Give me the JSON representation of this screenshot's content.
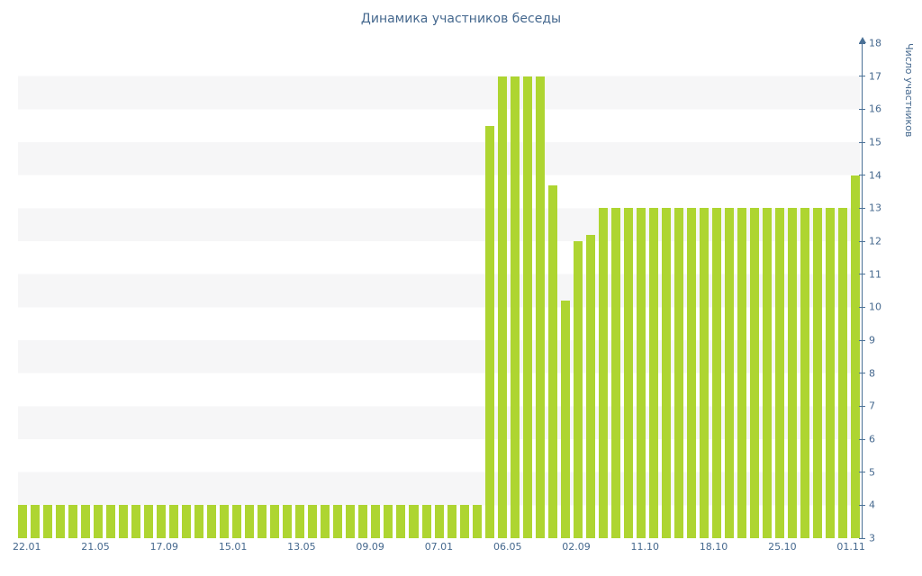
{
  "chart_data": {
    "type": "bar",
    "title": "Динамика участников беседы",
    "xlabel": "",
    "ylabel": "Число участников",
    "ylim": [
      3,
      18
    ],
    "y_tick_step": 1,
    "grid": "alternating-horizontal-stripes",
    "legend": "none",
    "x_tick_labels": [
      "22.01",
      "21.05",
      "17.09",
      "15.01",
      "13.05",
      "09.09",
      "07.01",
      "06.05",
      "02.09",
      "11.10",
      "18.10",
      "25.10",
      "01.11"
    ],
    "values": [
      4,
      4,
      4,
      4,
      4,
      4,
      4,
      4,
      4,
      4,
      4,
      4,
      4,
      4,
      4,
      4,
      4,
      4,
      4,
      4,
      4,
      4,
      4,
      4,
      4,
      4,
      4,
      4,
      4,
      4,
      4,
      4,
      4,
      4,
      4,
      4,
      4,
      15.5,
      17,
      17,
      17,
      17,
      13.7,
      10.2,
      12,
      12.2,
      13,
      13,
      13,
      13,
      13,
      13,
      13,
      13,
      13,
      13,
      13,
      13,
      13,
      13,
      13,
      13,
      13,
      13,
      13,
      13,
      14
    ],
    "colors": {
      "bar": "#aed531",
      "axis": "#4a7096",
      "text": "#45688e",
      "stripe": "#f6f6f7",
      "background": "#ffffff"
    }
  }
}
